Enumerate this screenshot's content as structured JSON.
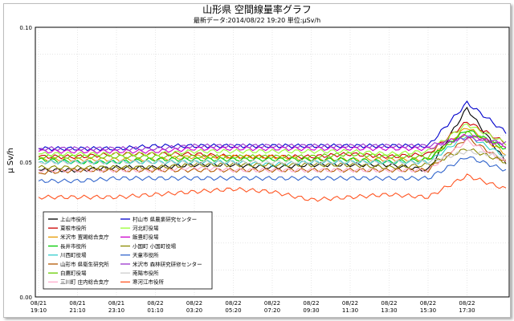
{
  "chart_data": {
    "type": "line",
    "title": "山形県 空間線量率グラフ",
    "subtitle": "最新データ:2014/08/22 19:20 単位:μSv/h",
    "ylabel": "μ Sv/h",
    "xlabel": "",
    "ylim": [
      0,
      0.1
    ],
    "y_ticks": [
      "0.00",
      "0.05",
      "0.10"
    ],
    "y_tick_values": [
      0,
      0.05,
      0.1
    ],
    "x_ticks": [
      {
        "line1": "08/21",
        "line2": "19:10"
      },
      {
        "line1": "08/21",
        "line2": "21:10"
      },
      {
        "line1": "08/21",
        "line2": "23:10"
      },
      {
        "line1": "08/22",
        "line2": "01:10"
      },
      {
        "line1": "08/22",
        "line2": "03:20"
      },
      {
        "line1": "08/22",
        "line2": "05:20"
      },
      {
        "line1": "08/22",
        "line2": "07:20"
      },
      {
        "line1": "08/22",
        "line2": "09:30"
      },
      {
        "line1": "08/22",
        "line2": "11:30"
      },
      {
        "line1": "08/22",
        "line2": "13:30"
      },
      {
        "line1": "08/22",
        "line2": "15:30"
      },
      {
        "line1": "08/22",
        "line2": "17:30"
      }
    ],
    "grid": true,
    "legend_position": "bottom-left",
    "series": [
      {
        "name": "上山市役所",
        "color": "#000000",
        "values": [
          0.047,
          0.047,
          0.048,
          0.048,
          0.049,
          0.049,
          0.048,
          0.049,
          0.049,
          0.049,
          0.047,
          0.07,
          0.05
        ]
      },
      {
        "name": "東根市役所",
        "color": "#cc0000",
        "values": [
          0.052,
          0.052,
          0.053,
          0.053,
          0.053,
          0.052,
          0.052,
          0.052,
          0.053,
          0.052,
          0.053,
          0.065,
          0.057
        ]
      },
      {
        "name": "米沢市 置賜総合支庁",
        "color": "#e69900",
        "values": [
          0.051,
          0.051,
          0.051,
          0.051,
          0.052,
          0.052,
          0.052,
          0.051,
          0.051,
          0.051,
          0.051,
          0.063,
          0.053
        ]
      },
      {
        "name": "長井市役所",
        "color": "#00cc00",
        "values": [
          0.051,
          0.05,
          0.05,
          0.051,
          0.051,
          0.051,
          0.051,
          0.051,
          0.051,
          0.05,
          0.051,
          0.062,
          0.055
        ]
      },
      {
        "name": "川西町役場",
        "color": "#33cccc",
        "values": [
          0.05,
          0.05,
          0.05,
          0.05,
          0.05,
          0.05,
          0.049,
          0.05,
          0.05,
          0.05,
          0.05,
          0.06,
          0.052
        ]
      },
      {
        "name": "山形市 県衛生研究所",
        "color": "#b35900",
        "values": [
          0.046,
          0.047,
          0.047,
          0.047,
          0.047,
          0.047,
          0.047,
          0.047,
          0.047,
          0.047,
          0.047,
          0.059,
          0.05
        ]
      },
      {
        "name": "白鷹町役場",
        "color": "#66cc00",
        "values": [
          0.052,
          0.052,
          0.052,
          0.052,
          0.052,
          0.052,
          0.052,
          0.052,
          0.053,
          0.052,
          0.052,
          0.061,
          0.055
        ]
      },
      {
        "name": "三川町 庄内総合支庁",
        "color": "#ffaacc",
        "values": [
          0.047,
          0.047,
          0.047,
          0.047,
          0.048,
          0.047,
          0.047,
          0.047,
          0.047,
          0.047,
          0.047,
          0.058,
          0.05
        ]
      },
      {
        "name": "村山市 県農業研究センター",
        "color": "#0000cc",
        "values": [
          0.055,
          0.055,
          0.055,
          0.056,
          0.056,
          0.056,
          0.056,
          0.056,
          0.056,
          0.056,
          0.056,
          0.072,
          0.061
        ]
      },
      {
        "name": "河北町役場",
        "color": "#99ff33",
        "values": [
          0.053,
          0.053,
          0.053,
          0.053,
          0.054,
          0.054,
          0.054,
          0.054,
          0.054,
          0.053,
          0.054,
          0.064,
          0.057
        ]
      },
      {
        "name": "飯豊町役場",
        "color": "#cc00cc",
        "values": [
          0.054,
          0.054,
          0.054,
          0.054,
          0.055,
          0.055,
          0.055,
          0.055,
          0.055,
          0.055,
          0.055,
          0.06,
          0.056
        ]
      },
      {
        "name": "小国町 小国町役場",
        "color": "#8a8a00",
        "values": [
          0.048,
          0.048,
          0.048,
          0.048,
          0.049,
          0.049,
          0.049,
          0.049,
          0.049,
          0.048,
          0.049,
          0.055,
          0.05
        ]
      },
      {
        "name": "天童市役所",
        "color": "#3366cc",
        "values": [
          0.043,
          0.043,
          0.044,
          0.044,
          0.044,
          0.044,
          0.044,
          0.044,
          0.044,
          0.044,
          0.044,
          0.052,
          0.047
        ]
      },
      {
        "name": "米沢市 森林研究研修センター",
        "color": "#9933cc",
        "values": [
          0.055,
          0.055,
          0.055,
          0.055,
          0.056,
          0.056,
          0.056,
          0.056,
          0.056,
          0.056,
          0.056,
          0.059,
          0.057
        ]
      },
      {
        "name": "南陽市役所",
        "color": "#cccccc",
        "values": [
          0.05,
          0.05,
          0.05,
          0.05,
          0.05,
          0.05,
          0.05,
          0.05,
          0.05,
          0.05,
          0.05,
          0.054,
          0.052
        ]
      },
      {
        "name": "寒河江市役所",
        "color": "#ff5522",
        "values": [
          0.037,
          0.037,
          0.037,
          0.038,
          0.039,
          0.04,
          0.039,
          0.036,
          0.037,
          0.038,
          0.037,
          0.045,
          0.04
        ]
      }
    ]
  }
}
